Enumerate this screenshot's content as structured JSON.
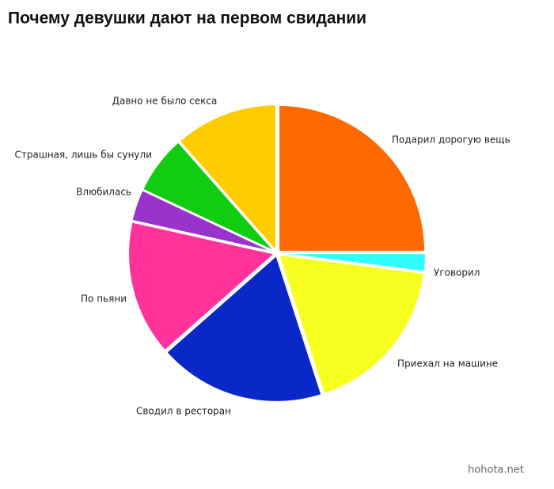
{
  "chart_data": {
    "type": "pie",
    "title": "Почему девушки дают на первом свидании",
    "categories": [
      "Подарил дорогую вещь",
      "Уговорил",
      "Приехал на машине",
      "Сводил в ресторан",
      "По пьяни",
      "Влюбилась",
      "Страшная, лишь бы сунули",
      "Давно не было секса"
    ],
    "values": [
      25,
      2,
      18,
      18.5,
      15,
      3.5,
      6.5,
      11.5
    ],
    "colors": [
      "#ff6a00",
      "#2efcff",
      "#f6ff1e",
      "#0a28c8",
      "#ff3399",
      "#9933cc",
      "#11cc11",
      "#ffcc00"
    ],
    "watermark": "hohota.net"
  }
}
